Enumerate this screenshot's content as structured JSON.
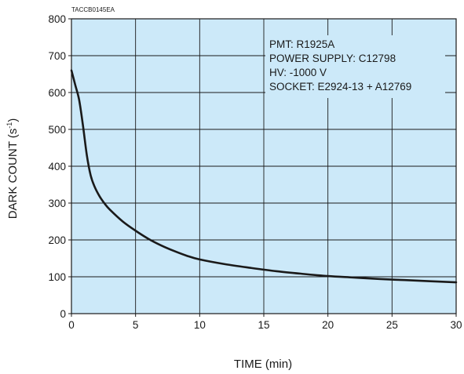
{
  "figure_code": "TACCB0145EA",
  "chart_data": {
    "type": "line",
    "xlabel": "TIME (min)",
    "ylabel_main": "DARK COUNT (s",
    "ylabel_sup": "-1",
    "ylabel_end": ")",
    "xlim": [
      0,
      30
    ],
    "ylim": [
      0,
      800
    ],
    "x_ticks": [
      0,
      5,
      10,
      15,
      20,
      25,
      30
    ],
    "y_ticks": [
      0,
      100,
      200,
      300,
      400,
      500,
      600,
      700,
      800
    ],
    "grid": true,
    "annotations": [
      "PMT: R1925A",
      "POWER SUPPLY: C12798",
      "HV: -1000 V",
      "SOCKET: E2924-13 + A12769"
    ],
    "series": [
      {
        "x": [
          0,
          0.3,
          0.6,
          0.9,
          1.2,
          1.5,
          1.8,
          2.2,
          2.6,
          3,
          4,
          5,
          6,
          7,
          8,
          9,
          10,
          12,
          14,
          16,
          18,
          20,
          22,
          24,
          26,
          28,
          30
        ],
        "y": [
          660,
          620,
          580,
          510,
          430,
          375,
          345,
          318,
          298,
          282,
          250,
          225,
          203,
          185,
          170,
          157,
          147,
          134,
          124,
          115,
          108,
          102,
          98,
          94,
          91,
          88,
          85
        ]
      }
    ]
  },
  "colors": {
    "plot_background": "#cce9f9",
    "grid": "#1a1a1a",
    "line": "#1a1a1a",
    "annotation_background": "#cce9f9"
  }
}
